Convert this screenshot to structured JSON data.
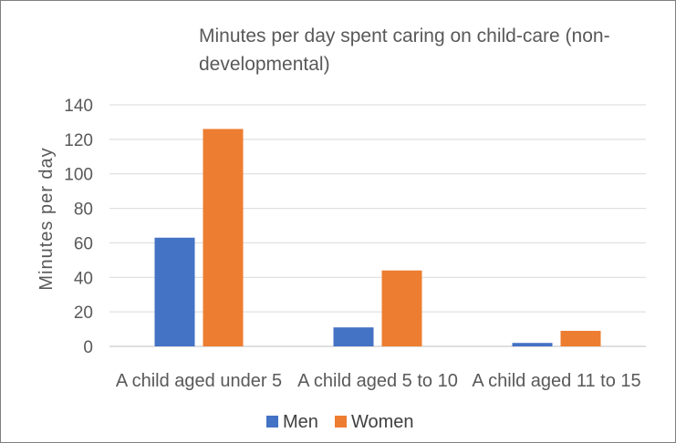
{
  "chart_data": {
    "type": "bar",
    "title": "Minutes per day spent caring on child-care (non-developmental)",
    "xlabel": "",
    "ylabel": "Minutes per day",
    "ylim": [
      0,
      140
    ],
    "yticks": [
      0,
      20,
      40,
      60,
      80,
      100,
      120,
      140
    ],
    "categories": [
      "A child aged under 5",
      "A child aged 5 to 10",
      "A child aged 11 to 15"
    ],
    "series": [
      {
        "name": "Men",
        "color": "#4472C4",
        "values": [
          63,
          11,
          2
        ]
      },
      {
        "name": "Women",
        "color": "#ED7D31",
        "values": [
          126,
          44,
          9
        ]
      }
    ],
    "grid": true,
    "legend_position": "bottom"
  }
}
